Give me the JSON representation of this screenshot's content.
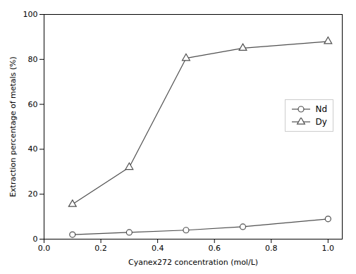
{
  "chart_data": {
    "type": "line",
    "xlabel": "Cyanex272 concentration (mol/L)",
    "ylabel": "Extraction percentage of metals (%)",
    "x": [
      0.1,
      0.3,
      0.5,
      0.7,
      1.0
    ],
    "series": [
      {
        "name": "Nd",
        "color": "#4d4d4d",
        "marker": "circle",
        "values": [
          2.0,
          3.0,
          4.0,
          5.5,
          9.0
        ]
      },
      {
        "name": "Dy",
        "color": "#4d4d4d",
        "marker": "triangle",
        "values": [
          15.5,
          32.0,
          80.5,
          85.0,
          88.0
        ]
      }
    ],
    "xlim": [
      0.0,
      1.05
    ],
    "ylim": [
      0,
      100
    ],
    "xticks": [
      {
        "value": 0,
        "label": "0.0"
      },
      0.2,
      0.4,
      0.6,
      0.8,
      {
        "value": 1,
        "label": "1.0"
      }
    ],
    "yticks": [
      0,
      20,
      40,
      60,
      80,
      100
    ],
    "grid": false,
    "legend": "right"
  }
}
